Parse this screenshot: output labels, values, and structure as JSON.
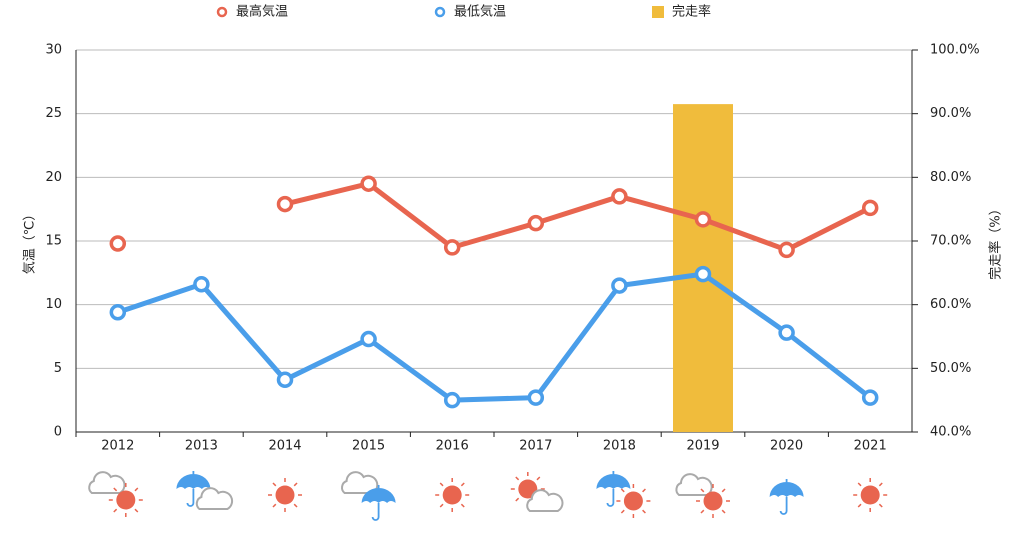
{
  "chart_data": {
    "type": "line",
    "categories": [
      "2012",
      "2013",
      "2014",
      "2015",
      "2016",
      "2017",
      "2018",
      "2019",
      "2020",
      "2021"
    ],
    "series": [
      {
        "name": "最高気温",
        "color": "#e8654f",
        "values": [
          14.8,
          null,
          17.9,
          19.5,
          14.5,
          16.4,
          18.5,
          16.7,
          14.3,
          17.6
        ]
      },
      {
        "name": "最低気温",
        "color": "#4a9eea",
        "values": [
          9.4,
          11.6,
          4.1,
          7.3,
          2.5,
          2.7,
          11.5,
          12.4,
          7.8,
          2.7
        ]
      },
      {
        "name": "完走率",
        "type": "bar",
        "axis": "y2",
        "color": "#f0bc3c",
        "values": [
          null,
          null,
          null,
          null,
          null,
          null,
          null,
          91.5,
          null,
          null
        ]
      }
    ],
    "ylabel": "気温（℃）",
    "y2label": "完走率（%）",
    "ylim": [
      0,
      30
    ],
    "yticks": [
      0,
      5,
      10,
      15,
      20,
      25,
      30
    ],
    "y2lim": [
      40,
      100
    ],
    "y2ticks": [
      {
        "value": 40,
        "label": "40.0%"
      },
      {
        "value": 50,
        "label": "50.0%"
      },
      {
        "value": 60,
        "label": "60.0%"
      },
      {
        "value": 70,
        "label": "70.0%"
      },
      {
        "value": 80,
        "label": "80.0%"
      },
      {
        "value": 90,
        "label": "90.0%"
      },
      {
        "value": 100,
        "label": "100.0%"
      }
    ],
    "grid": true,
    "legend": "top"
  }
}
